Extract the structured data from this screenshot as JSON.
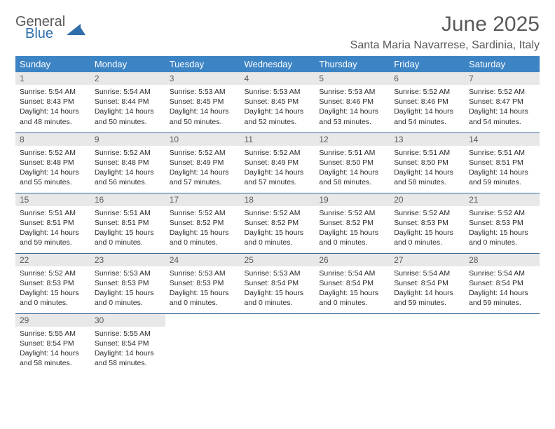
{
  "logo": {
    "general": "General",
    "blue": "Blue",
    "tri_color": "#2f6ea9"
  },
  "title": "June 2025",
  "location": "Santa Maria Navarrese, Sardinia, Italy",
  "colors": {
    "header_bg": "#3d84c5",
    "header_text": "#ffffff",
    "daynum_bg": "#e8e8e8",
    "cell_border": "#3d6a9a",
    "title_color": "#595959",
    "body_text": "#2b2b2b"
  },
  "weekdays": [
    "Sunday",
    "Monday",
    "Tuesday",
    "Wednesday",
    "Thursday",
    "Friday",
    "Saturday"
  ],
  "weeks": [
    [
      {
        "n": "1",
        "sr": "5:54 AM",
        "ss": "8:43 PM",
        "dl": "14 hours and 48 minutes."
      },
      {
        "n": "2",
        "sr": "5:54 AM",
        "ss": "8:44 PM",
        "dl": "14 hours and 50 minutes."
      },
      {
        "n": "3",
        "sr": "5:53 AM",
        "ss": "8:45 PM",
        "dl": "14 hours and 50 minutes."
      },
      {
        "n": "4",
        "sr": "5:53 AM",
        "ss": "8:45 PM",
        "dl": "14 hours and 52 minutes."
      },
      {
        "n": "5",
        "sr": "5:53 AM",
        "ss": "8:46 PM",
        "dl": "14 hours and 53 minutes."
      },
      {
        "n": "6",
        "sr": "5:52 AM",
        "ss": "8:46 PM",
        "dl": "14 hours and 54 minutes."
      },
      {
        "n": "7",
        "sr": "5:52 AM",
        "ss": "8:47 PM",
        "dl": "14 hours and 54 minutes."
      }
    ],
    [
      {
        "n": "8",
        "sr": "5:52 AM",
        "ss": "8:48 PM",
        "dl": "14 hours and 55 minutes."
      },
      {
        "n": "9",
        "sr": "5:52 AM",
        "ss": "8:48 PM",
        "dl": "14 hours and 56 minutes."
      },
      {
        "n": "10",
        "sr": "5:52 AM",
        "ss": "8:49 PM",
        "dl": "14 hours and 57 minutes."
      },
      {
        "n": "11",
        "sr": "5:52 AM",
        "ss": "8:49 PM",
        "dl": "14 hours and 57 minutes."
      },
      {
        "n": "12",
        "sr": "5:51 AM",
        "ss": "8:50 PM",
        "dl": "14 hours and 58 minutes."
      },
      {
        "n": "13",
        "sr": "5:51 AM",
        "ss": "8:50 PM",
        "dl": "14 hours and 58 minutes."
      },
      {
        "n": "14",
        "sr": "5:51 AM",
        "ss": "8:51 PM",
        "dl": "14 hours and 59 minutes."
      }
    ],
    [
      {
        "n": "15",
        "sr": "5:51 AM",
        "ss": "8:51 PM",
        "dl": "14 hours and 59 minutes."
      },
      {
        "n": "16",
        "sr": "5:51 AM",
        "ss": "8:51 PM",
        "dl": "15 hours and 0 minutes."
      },
      {
        "n": "17",
        "sr": "5:52 AM",
        "ss": "8:52 PM",
        "dl": "15 hours and 0 minutes."
      },
      {
        "n": "18",
        "sr": "5:52 AM",
        "ss": "8:52 PM",
        "dl": "15 hours and 0 minutes."
      },
      {
        "n": "19",
        "sr": "5:52 AM",
        "ss": "8:52 PM",
        "dl": "15 hours and 0 minutes."
      },
      {
        "n": "20",
        "sr": "5:52 AM",
        "ss": "8:53 PM",
        "dl": "15 hours and 0 minutes."
      },
      {
        "n": "21",
        "sr": "5:52 AM",
        "ss": "8:53 PM",
        "dl": "15 hours and 0 minutes."
      }
    ],
    [
      {
        "n": "22",
        "sr": "5:52 AM",
        "ss": "8:53 PM",
        "dl": "15 hours and 0 minutes."
      },
      {
        "n": "23",
        "sr": "5:53 AM",
        "ss": "8:53 PM",
        "dl": "15 hours and 0 minutes."
      },
      {
        "n": "24",
        "sr": "5:53 AM",
        "ss": "8:53 PM",
        "dl": "15 hours and 0 minutes."
      },
      {
        "n": "25",
        "sr": "5:53 AM",
        "ss": "8:54 PM",
        "dl": "15 hours and 0 minutes."
      },
      {
        "n": "26",
        "sr": "5:54 AM",
        "ss": "8:54 PM",
        "dl": "15 hours and 0 minutes."
      },
      {
        "n": "27",
        "sr": "5:54 AM",
        "ss": "8:54 PM",
        "dl": "14 hours and 59 minutes."
      },
      {
        "n": "28",
        "sr": "5:54 AM",
        "ss": "8:54 PM",
        "dl": "14 hours and 59 minutes."
      }
    ],
    [
      {
        "n": "29",
        "sr": "5:55 AM",
        "ss": "8:54 PM",
        "dl": "14 hours and 58 minutes."
      },
      {
        "n": "30",
        "sr": "5:55 AM",
        "ss": "8:54 PM",
        "dl": "14 hours and 58 minutes."
      },
      null,
      null,
      null,
      null,
      null
    ]
  ],
  "labels": {
    "sunrise": "Sunrise:",
    "sunset": "Sunset:",
    "daylight": "Daylight:"
  }
}
